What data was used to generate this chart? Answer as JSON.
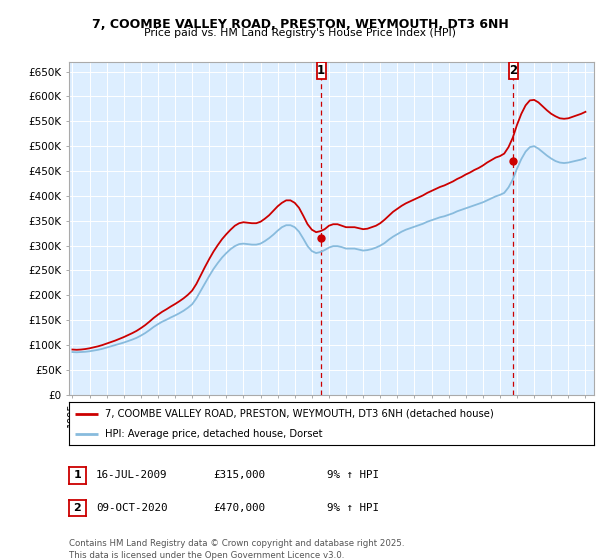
{
  "title_line1": "7, COOMBE VALLEY ROAD, PRESTON, WEYMOUTH, DT3 6NH",
  "title_line2": "Price paid vs. HM Land Registry's House Price Index (HPI)",
  "ylabel_ticks": [
    "£0",
    "£50K",
    "£100K",
    "£150K",
    "£200K",
    "£250K",
    "£300K",
    "£350K",
    "£400K",
    "£450K",
    "£500K",
    "£550K",
    "£600K",
    "£650K"
  ],
  "ytick_values": [
    0,
    50000,
    100000,
    150000,
    200000,
    250000,
    300000,
    350000,
    400000,
    450000,
    500000,
    550000,
    600000,
    650000
  ],
  "ylim": [
    0,
    670000
  ],
  "xlim_start": 1994.8,
  "xlim_end": 2025.5,
  "legend_line1": "7, COOMBE VALLEY ROAD, PRESTON, WEYMOUTH, DT3 6NH (detached house)",
  "legend_line2": "HPI: Average price, detached house, Dorset",
  "marker1_x": 2009.54,
  "marker1_y": 315000,
  "marker2_x": 2020.78,
  "marker2_y": 470000,
  "marker1_date": "16-JUL-2009",
  "marker1_price": "£315,000",
  "marker1_hpi": "9% ↑ HPI",
  "marker2_date": "09-OCT-2020",
  "marker2_price": "£470,000",
  "marker2_hpi": "9% ↑ HPI",
  "footer_text": "Contains HM Land Registry data © Crown copyright and database right 2025.\nThis data is licensed under the Open Government Licence v3.0.",
  "line_color_red": "#cc0000",
  "line_color_blue": "#88bbdd",
  "background_color": "#ddeeff",
  "hpi_years": [
    1995.0,
    1995.25,
    1995.5,
    1995.75,
    1996.0,
    1996.25,
    1996.5,
    1996.75,
    1997.0,
    1997.25,
    1997.5,
    1997.75,
    1998.0,
    1998.25,
    1998.5,
    1998.75,
    1999.0,
    1999.25,
    1999.5,
    1999.75,
    2000.0,
    2000.25,
    2000.5,
    2000.75,
    2001.0,
    2001.25,
    2001.5,
    2001.75,
    2002.0,
    2002.25,
    2002.5,
    2002.75,
    2003.0,
    2003.25,
    2003.5,
    2003.75,
    2004.0,
    2004.25,
    2004.5,
    2004.75,
    2005.0,
    2005.25,
    2005.5,
    2005.75,
    2006.0,
    2006.25,
    2006.5,
    2006.75,
    2007.0,
    2007.25,
    2007.5,
    2007.75,
    2008.0,
    2008.25,
    2008.5,
    2008.75,
    2009.0,
    2009.25,
    2009.5,
    2009.75,
    2010.0,
    2010.25,
    2010.5,
    2010.75,
    2011.0,
    2011.25,
    2011.5,
    2011.75,
    2012.0,
    2012.25,
    2012.5,
    2012.75,
    2013.0,
    2013.25,
    2013.5,
    2013.75,
    2014.0,
    2014.25,
    2014.5,
    2014.75,
    2015.0,
    2015.25,
    2015.5,
    2015.75,
    2016.0,
    2016.25,
    2016.5,
    2016.75,
    2017.0,
    2017.25,
    2017.5,
    2017.75,
    2018.0,
    2018.25,
    2018.5,
    2018.75,
    2019.0,
    2019.25,
    2019.5,
    2019.75,
    2020.0,
    2020.25,
    2020.5,
    2020.75,
    2021.0,
    2021.25,
    2021.5,
    2021.75,
    2022.0,
    2022.25,
    2022.5,
    2022.75,
    2023.0,
    2023.25,
    2023.5,
    2023.75,
    2024.0,
    2024.25,
    2024.5,
    2024.75,
    2025.0
  ],
  "hpi_values": [
    86000,
    85500,
    86000,
    86500,
    87500,
    89000,
    90500,
    92500,
    95000,
    97500,
    100000,
    102500,
    105000,
    108000,
    111000,
    114500,
    119000,
    124000,
    130000,
    136500,
    142000,
    147000,
    151000,
    155500,
    159500,
    164000,
    169000,
    175000,
    182000,
    194000,
    209000,
    224000,
    239000,
    253000,
    265000,
    276000,
    285000,
    293000,
    299000,
    303000,
    304000,
    303000,
    302000,
    302000,
    304000,
    309000,
    315000,
    322000,
    330000,
    337000,
    341000,
    341000,
    337000,
    328000,
    314000,
    299000,
    289000,
    285000,
    287000,
    291000,
    296000,
    299000,
    299000,
    297000,
    294000,
    294000,
    294000,
    292000,
    290000,
    291000,
    293000,
    296000,
    300000,
    305000,
    312000,
    318000,
    323000,
    328000,
    332000,
    335000,
    338000,
    341000,
    344000,
    348000,
    351000,
    354000,
    357000,
    359000,
    362000,
    365000,
    369000,
    372000,
    375000,
    378000,
    381000,
    384000,
    387000,
    391000,
    395000,
    399000,
    402000,
    406000,
    417000,
    433000,
    455000,
    474000,
    489000,
    498000,
    500000,
    495000,
    488000,
    481000,
    475000,
    470000,
    467000,
    466000,
    467000,
    469000,
    471000,
    473000,
    476000
  ],
  "red_years": [
    1995.0,
    1995.25,
    1995.5,
    1995.75,
    1996.0,
    1996.25,
    1996.5,
    1996.75,
    1997.0,
    1997.25,
    1997.5,
    1997.75,
    1998.0,
    1998.25,
    1998.5,
    1998.75,
    1999.0,
    1999.25,
    1999.5,
    1999.75,
    2000.0,
    2000.25,
    2000.5,
    2000.75,
    2001.0,
    2001.25,
    2001.5,
    2001.75,
    2002.0,
    2002.25,
    2002.5,
    2002.75,
    2003.0,
    2003.25,
    2003.5,
    2003.75,
    2004.0,
    2004.25,
    2004.5,
    2004.75,
    2005.0,
    2005.25,
    2005.5,
    2005.75,
    2006.0,
    2006.25,
    2006.5,
    2006.75,
    2007.0,
    2007.25,
    2007.5,
    2007.75,
    2008.0,
    2008.25,
    2008.5,
    2008.75,
    2009.0,
    2009.25,
    2009.5,
    2009.75,
    2010.0,
    2010.25,
    2010.5,
    2010.75,
    2011.0,
    2011.25,
    2011.5,
    2011.75,
    2012.0,
    2012.25,
    2012.5,
    2012.75,
    2013.0,
    2013.25,
    2013.5,
    2013.75,
    2014.0,
    2014.25,
    2014.5,
    2014.75,
    2015.0,
    2015.25,
    2015.5,
    2015.75,
    2016.0,
    2016.25,
    2016.5,
    2016.75,
    2017.0,
    2017.25,
    2017.5,
    2017.75,
    2018.0,
    2018.25,
    2018.5,
    2018.75,
    2019.0,
    2019.25,
    2019.5,
    2019.75,
    2020.0,
    2020.25,
    2020.5,
    2020.75,
    2021.0,
    2021.25,
    2021.5,
    2021.75,
    2022.0,
    2022.25,
    2022.5,
    2022.75,
    2023.0,
    2023.25,
    2023.5,
    2023.75,
    2024.0,
    2024.25,
    2024.5,
    2024.75,
    2025.0
  ],
  "red_values": [
    91000,
    90500,
    91000,
    92000,
    93500,
    95500,
    97500,
    100000,
    103000,
    106000,
    109000,
    112500,
    116000,
    120000,
    124000,
    128500,
    134000,
    140000,
    147000,
    154500,
    161000,
    167000,
    172000,
    177500,
    182500,
    188000,
    194000,
    201000,
    209500,
    223000,
    240000,
    257000,
    273000,
    288000,
    301000,
    313000,
    323000,
    332000,
    340000,
    345000,
    347000,
    346000,
    345000,
    345000,
    348000,
    354000,
    361000,
    370000,
    379000,
    386000,
    391000,
    391000,
    386000,
    376000,
    360000,
    343000,
    332000,
    327000,
    329000,
    333000,
    340000,
    343000,
    343000,
    340000,
    337000,
    337000,
    337000,
    335000,
    333000,
    334000,
    337000,
    340000,
    345000,
    352000,
    360000,
    368000,
    374000,
    380000,
    385000,
    389000,
    393000,
    397000,
    401000,
    406000,
    410000,
    414000,
    418000,
    421000,
    425000,
    429000,
    434000,
    438000,
    443000,
    447000,
    452000,
    456000,
    461000,
    467000,
    472000,
    477000,
    480000,
    485000,
    498000,
    517000,
    543000,
    565000,
    582000,
    592000,
    593000,
    588000,
    580000,
    572000,
    565000,
    560000,
    556000,
    555000,
    556000,
    559000,
    562000,
    565000,
    569000
  ],
  "sale1_x": 2009.54,
  "sale1_y": 315000,
  "sale2_x": 2020.78,
  "sale2_y": 470000
}
